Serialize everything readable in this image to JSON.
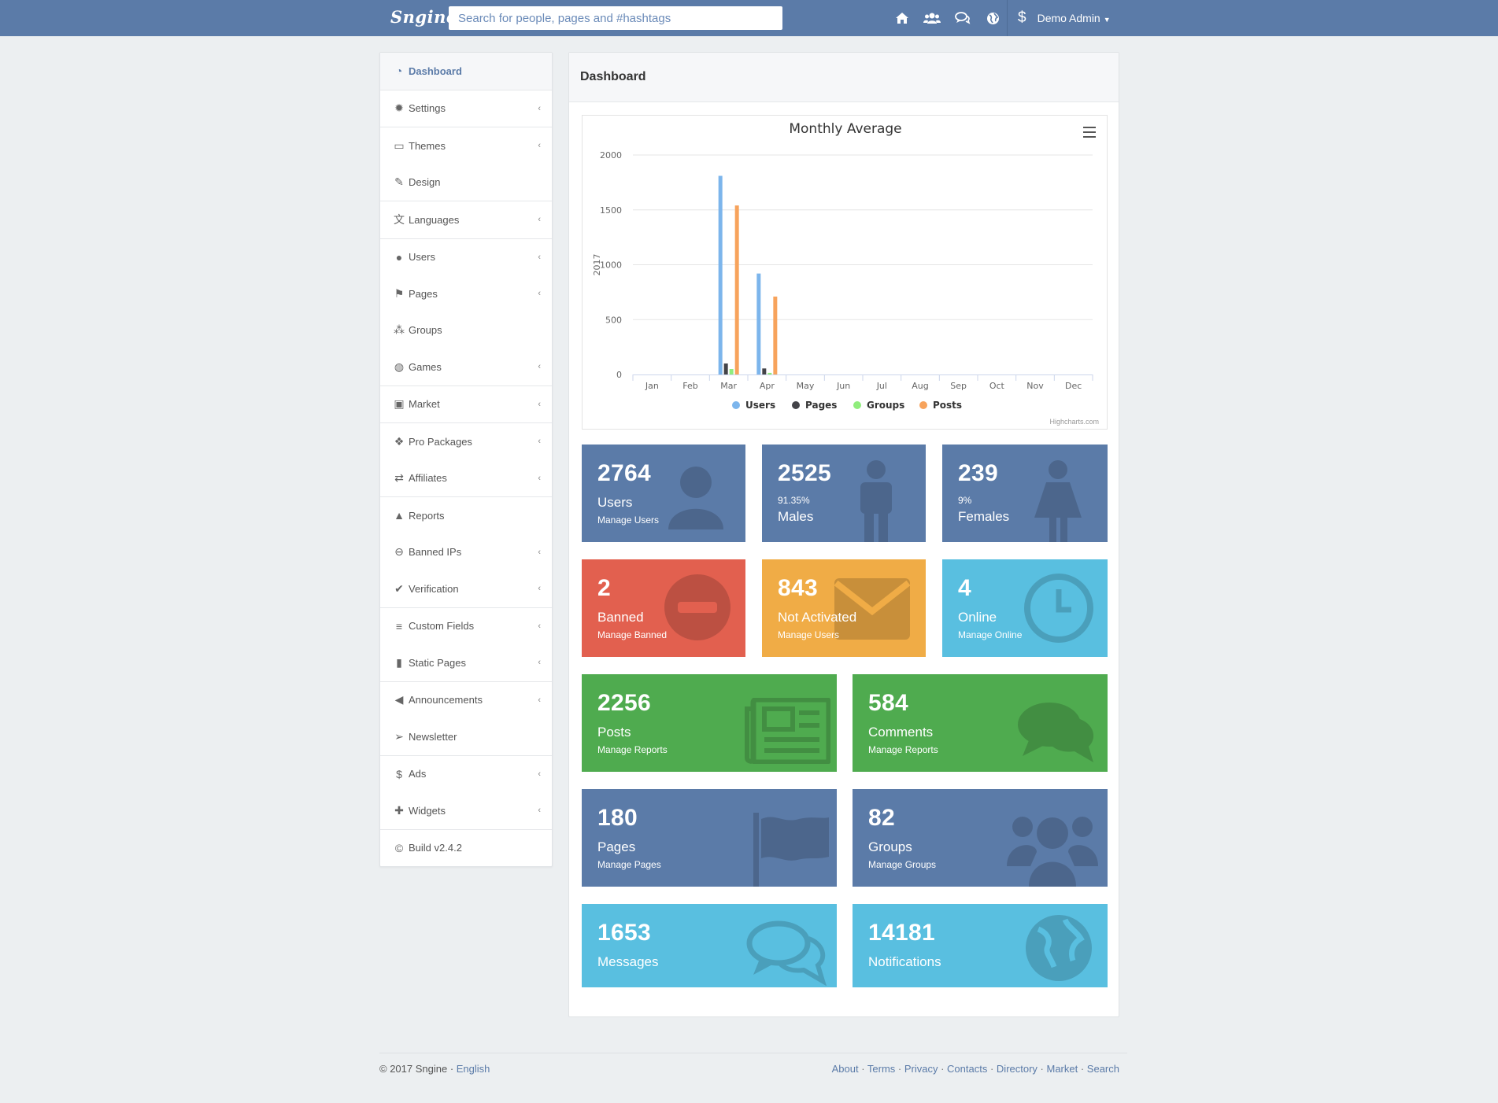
{
  "topbar": {
    "brand": "Sngine",
    "search_placeholder": "Search for people, pages and #hashtags",
    "icons": [
      "home-icon",
      "friends-icon",
      "messages-icon",
      "globe-icon",
      "dollar-icon"
    ],
    "user_name": "Demo Admin"
  },
  "sidebar": {
    "groups": [
      [
        {
          "label": "Dashboard",
          "icon": "dashboard-icon",
          "chevron": false,
          "active": true
        }
      ],
      [
        {
          "label": "Settings",
          "icon": "gear-icon",
          "chevron": true
        }
      ],
      [
        {
          "label": "Themes",
          "icon": "desktop-icon",
          "chevron": true
        },
        {
          "label": "Design",
          "icon": "paintbrush-icon",
          "chevron": false
        }
      ],
      [
        {
          "label": "Languages",
          "icon": "language-icon",
          "chevron": true
        }
      ],
      [
        {
          "label": "Users",
          "icon": "user-icon",
          "chevron": true
        },
        {
          "label": "Pages",
          "icon": "flag-icon",
          "chevron": true
        },
        {
          "label": "Groups",
          "icon": "group-icon",
          "chevron": false
        },
        {
          "label": "Games",
          "icon": "gamepad-icon",
          "chevron": true
        }
      ],
      [
        {
          "label": "Market",
          "icon": "shopping-bag-icon",
          "chevron": true
        }
      ],
      [
        {
          "label": "Pro Packages",
          "icon": "cubes-icon",
          "chevron": true
        },
        {
          "label": "Affiliates",
          "icon": "exchange-icon",
          "chevron": true
        }
      ],
      [
        {
          "label": "Reports",
          "icon": "warning-icon",
          "chevron": false
        },
        {
          "label": "Banned IPs",
          "icon": "ban-icon",
          "chevron": true
        },
        {
          "label": "Verification",
          "icon": "check-circle-icon",
          "chevron": true
        }
      ],
      [
        {
          "label": "Custom Fields",
          "icon": "list-icon",
          "chevron": true
        },
        {
          "label": "Static Pages",
          "icon": "file-icon",
          "chevron": true
        }
      ],
      [
        {
          "label": "Announcements",
          "icon": "bullhorn-icon",
          "chevron": true
        },
        {
          "label": "Newsletter",
          "icon": "paper-plane-icon",
          "chevron": false
        }
      ],
      [
        {
          "label": "Ads",
          "icon": "dollar-icon",
          "chevron": true
        },
        {
          "label": "Widgets",
          "icon": "puzzle-icon",
          "chevron": true
        }
      ],
      [
        {
          "label": "Build v2.4.2",
          "icon": "copyright-icon",
          "chevron": false
        }
      ]
    ]
  },
  "main": {
    "title": "Dashboard"
  },
  "chart_data": {
    "type": "bar",
    "title": "Monthly Average",
    "ylabel": "2017",
    "xlabel": "",
    "ylim": [
      0,
      2000
    ],
    "yticks": [
      0,
      500,
      1000,
      1500,
      2000
    ],
    "categories": [
      "Jan",
      "Feb",
      "Mar",
      "Apr",
      "May",
      "Jun",
      "Jul",
      "Aug",
      "Sep",
      "Oct",
      "Nov",
      "Dec"
    ],
    "series": [
      {
        "name": "Users",
        "color": "#7cb5ec",
        "values": [
          0,
          0,
          1810,
          920,
          0,
          0,
          0,
          0,
          0,
          0,
          0,
          0
        ]
      },
      {
        "name": "Pages",
        "color": "#434348",
        "values": [
          0,
          0,
          100,
          55,
          0,
          0,
          0,
          0,
          0,
          0,
          0,
          0
        ]
      },
      {
        "name": "Groups",
        "color": "#90ed7d",
        "values": [
          0,
          0,
          50,
          15,
          0,
          0,
          0,
          0,
          0,
          0,
          0,
          0
        ]
      },
      {
        "name": "Posts",
        "color": "#f7a35c",
        "values": [
          0,
          0,
          1540,
          710,
          0,
          0,
          0,
          0,
          0,
          0,
          0,
          0
        ]
      }
    ],
    "legend_position": "bottom-center",
    "grid": true,
    "credit": "Highcharts.com"
  },
  "tiles": {
    "users": {
      "value": "2764",
      "label": "Users",
      "sub": "Manage Users",
      "icon": "user-icon"
    },
    "males": {
      "value": "2525",
      "pct": "91.35%",
      "label": "Males",
      "icon": "male-icon"
    },
    "females": {
      "value": "239",
      "pct": "9%",
      "label": "Females",
      "icon": "female-icon"
    },
    "banned": {
      "value": "2",
      "label": "Banned",
      "sub": "Manage Banned",
      "icon": "minus-circle-icon"
    },
    "not_activated": {
      "value": "843",
      "label": "Not Activated",
      "sub": "Manage Users",
      "icon": "envelope-icon"
    },
    "online": {
      "value": "4",
      "label": "Online",
      "sub": "Manage Online",
      "icon": "clock-icon"
    },
    "posts": {
      "value": "2256",
      "label": "Posts",
      "sub": "Manage Reports",
      "icon": "newspaper-icon"
    },
    "comments": {
      "value": "584",
      "label": "Comments",
      "sub": "Manage Reports",
      "icon": "comments-icon"
    },
    "pages": {
      "value": "180",
      "label": "Pages",
      "sub": "Manage Pages",
      "icon": "flag-icon"
    },
    "groups": {
      "value": "82",
      "label": "Groups",
      "sub": "Manage Groups",
      "icon": "group-icon"
    },
    "messages": {
      "value": "1653",
      "label": "Messages",
      "icon": "comments-icon"
    },
    "notifications": {
      "value": "14181",
      "label": "Notifications",
      "icon": "globe-icon"
    }
  },
  "footer": {
    "copyright": "© 2017 Sngine · ",
    "language": "English",
    "links": [
      "About",
      "Terms",
      "Privacy",
      "Contacts",
      "Directory",
      "Market",
      "Search"
    ]
  }
}
